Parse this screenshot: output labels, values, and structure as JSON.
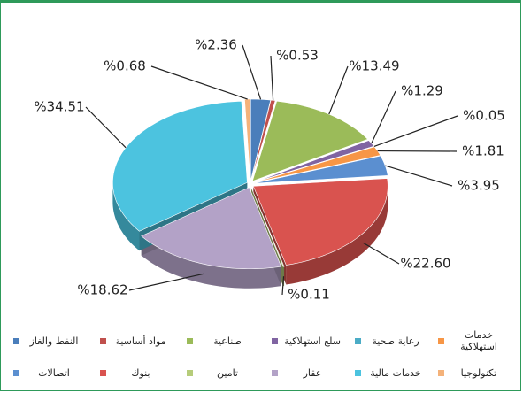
{
  "chart_data": {
    "type": "pie3d",
    "categories": [
      "النفط والغاز",
      "مواد أساسية",
      "صناعية",
      "سلع استهلاكية",
      "رعاية صحية",
      "خدمات استهلاكية",
      "اتصالات",
      "بنوك",
      "تامين",
      "عقار",
      "خدمات مالية",
      "تكنولوجيا"
    ],
    "values": [
      2.36,
      0.53,
      13.49,
      1.29,
      0.05,
      1.81,
      3.95,
      22.6,
      0.11,
      18.62,
      34.51,
      0.68
    ],
    "value_labels": [
      "%2.36",
      "%0.53",
      "%13.49",
      "%1.29",
      "%0.05",
      "%1.81",
      "%3.95",
      "%22.60",
      "%0.11",
      "%18.62",
      "%34.51",
      "%0.68"
    ],
    "colors": [
      "#4a7ebb",
      "#c0504d",
      "#9bbb59",
      "#8064a2",
      "#4bacc6",
      "#f79646",
      "#5b8fd0",
      "#d9534f",
      "#b6cc7a",
      "#b3a2c7",
      "#4cc3df",
      "#f4b27a"
    ],
    "legend": "bottom"
  }
}
